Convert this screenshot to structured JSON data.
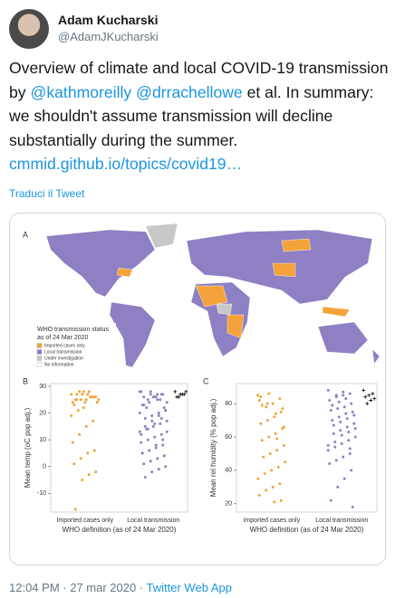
{
  "header": {
    "name": "Adam Kucharski",
    "handle": "@AdamJKucharski"
  },
  "tweet": {
    "segments": [
      {
        "text": "Overview of climate and local COVID-19 transmission by ",
        "link": false
      },
      {
        "text": "@kathmoreilly",
        "link": true
      },
      {
        "text": " ",
        "link": false
      },
      {
        "text": "@drrachellowe",
        "link": true
      },
      {
        "text": " et al. In summary: we shouldn't assume transmission will decline substantially during the summer. ",
        "link": false
      },
      {
        "text": "cmmid.github.io/topics/covid19…",
        "link": true
      }
    ]
  },
  "translate": "Traduci il Tweet",
  "map": {
    "panel": "A",
    "legend_title": "WHO transmission status",
    "legend_subtitle": "as of 24 Mar 2020",
    "legend_items": [
      {
        "label": "Imported cases only",
        "color": "#f3a33a"
      },
      {
        "label": "Local transmission",
        "color": "#8e80c2"
      },
      {
        "label": "Under investigation",
        "color": "#c8c8c8"
      },
      {
        "label": "No information",
        "color": "#ffffff"
      }
    ]
  },
  "chart_data": [
    {
      "type": "strip",
      "panel": "B",
      "y_label": "Mean temp (oC pop adj.)",
      "x_label": "WHO definition (as of 24 Mar 2020)",
      "categories": [
        "Imported cases only",
        "Local transmission"
      ],
      "ylim": [
        -17,
        31
      ],
      "yticks": [
        -10,
        0,
        10,
        20,
        30
      ],
      "groups": [
        {
          "category": 0,
          "marker": "dot",
          "color": "#f3a33a",
          "values": [
            27,
            26,
            25,
            28,
            24,
            26,
            27,
            25,
            23,
            26,
            28,
            27,
            25,
            24,
            26,
            22,
            27,
            25,
            26,
            24,
            21,
            19,
            17,
            15,
            12,
            9,
            6,
            5,
            3,
            1,
            -2,
            -3,
            -5,
            -16,
            24,
            26,
            28,
            25
          ]
        },
        {
          "category": 1,
          "marker": "dot",
          "color": "#8e80c2",
          "values": [
            28,
            27,
            26,
            25,
            28,
            27,
            26,
            24,
            23,
            22,
            25,
            27,
            26,
            21,
            20,
            19,
            18,
            17,
            16,
            15,
            14,
            13,
            12,
            11,
            10,
            9,
            8,
            7,
            6,
            5,
            4,
            3,
            2,
            1,
            0,
            -1,
            -2,
            -4,
            24,
            25,
            26,
            22,
            20,
            18,
            16,
            14,
            12,
            10,
            8,
            6,
            5,
            4,
            27,
            28,
            23,
            21,
            19,
            17,
            15,
            13
          ]
        },
        {
          "category": 1,
          "marker": "cross",
          "color": "#000000",
          "values": [
            28,
            27,
            27,
            26,
            28,
            27,
            26
          ]
        }
      ]
    },
    {
      "type": "strip",
      "panel": "C",
      "y_label": "Mean rel humidity (% pop adj.)",
      "x_label": "WHO definition (as of 24 Mar 2020)",
      "categories": [
        "Imported cases only",
        "Local transmission"
      ],
      "ylim": [
        15,
        92
      ],
      "yticks": [
        20,
        40,
        60,
        80
      ],
      "groups": [
        {
          "category": 0,
          "marker": "dot",
          "color": "#f3a33a",
          "values": [
            85,
            83,
            80,
            78,
            82,
            75,
            72,
            70,
            68,
            65,
            62,
            60,
            58,
            55,
            52,
            50,
            48,
            45,
            42,
            40,
            38,
            35,
            32,
            30,
            28,
            25,
            22,
            21,
            80,
            84,
            77,
            74,
            86,
            79,
            66,
            59
          ]
        },
        {
          "category": 1,
          "marker": "dot",
          "color": "#8e80c2",
          "values": [
            88,
            86,
            85,
            84,
            82,
            80,
            78,
            77,
            76,
            75,
            74,
            72,
            70,
            68,
            66,
            64,
            62,
            60,
            58,
            56,
            54,
            52,
            50,
            48,
            46,
            44,
            40,
            35,
            30,
            22,
            18,
            83,
            81,
            79,
            73,
            71,
            69,
            67,
            65,
            63,
            61,
            57,
            55,
            53,
            87,
            85
          ]
        },
        {
          "category": 1,
          "marker": "cross",
          "color": "#000000",
          "values": [
            88,
            86,
            85,
            84,
            83,
            82,
            80
          ]
        }
      ]
    }
  ],
  "footer": {
    "time": "12:04 PM · 27 mar 2020 ·",
    "source": "Twitter Web App"
  }
}
